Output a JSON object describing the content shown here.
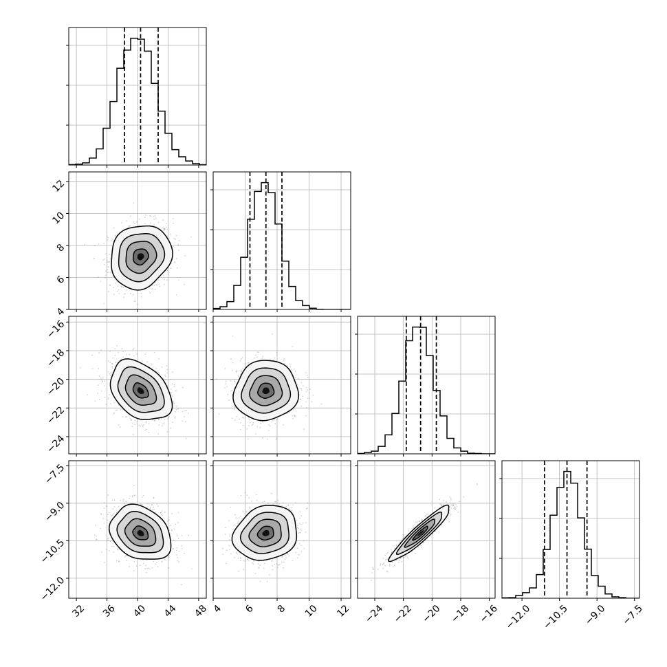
{
  "chart_data": {
    "type": "corner",
    "grid": true,
    "parameters": [
      {
        "range": [
          31,
          49
        ],
        "ticks": [
          32,
          36,
          40,
          44,
          48
        ],
        "tick_labels": [
          "32",
          "36",
          "40",
          "44",
          "48"
        ],
        "quantiles": [
          38.3,
          40.4,
          42.7
        ],
        "hist": [
          0.3,
          0.6,
          1.4,
          4.5,
          10.4,
          23.7,
          40.9,
          62.3,
          74.0,
          81.6,
          81.0,
          73.3,
          52.6,
          34.7,
          20.4,
          9.9,
          5.3,
          2.6,
          0.9,
          0.2
        ]
      },
      {
        "range": [
          4,
          12.6
        ],
        "ticks": [
          4,
          6,
          8,
          10,
          12
        ],
        "tick_labels": [
          "4",
          "6",
          "8",
          "10",
          "12"
        ],
        "quantiles": [
          6.3,
          7.3,
          8.3
        ],
        "hist": [
          0.5,
          1.4,
          4.0,
          12.3,
          26.8,
          46.3,
          60.6,
          65.1,
          60.0,
          43.9,
          24.8,
          11.8,
          4.5,
          2.0,
          0.6,
          0.1,
          0,
          0,
          0,
          0
        ]
      },
      {
        "range": [
          -25.2,
          -15.6
        ],
        "ticks": [
          -24,
          -22,
          -20,
          -18,
          -16
        ],
        "tick_labels": [
          "−24",
          "−22",
          "−20",
          "−18",
          "−16"
        ],
        "quantiles": [
          -21.8,
          -20.8,
          -19.7
        ],
        "hist": [
          0.2,
          0.7,
          1.4,
          3.9,
          9.9,
          21.1,
          38.0,
          59.1,
          66.2,
          66.1,
          51.3,
          33.1,
          19.8,
          8.1,
          3.1,
          1.4,
          0.3,
          0.2,
          0,
          0
        ]
      },
      {
        "range": [
          -12.8,
          -7.3
        ],
        "ticks": [
          -12,
          -10.5,
          -9,
          -7.5
        ],
        "tick_labels": [
          "−12.0",
          "−10.5",
          "−9.0",
          "−7.5"
        ],
        "quantiles": [
          -11.1,
          -10.2,
          -9.4
        ],
        "hist": [
          0.2,
          0.3,
          1.4,
          2.9,
          5.3,
          12.2,
          25.1,
          42.8,
          57.1,
          65.3,
          59.3,
          41.4,
          25.3,
          11.7,
          6.2,
          2.2,
          0.7,
          0.3,
          0,
          0
        ]
      }
    ],
    "y_ticks": [
      null,
      {
        "ticks": [
          4,
          6,
          8,
          10,
          12
        ],
        "tick_labels": [
          "4",
          "6",
          "8",
          "10",
          "12"
        ]
      },
      {
        "ticks": [
          -24,
          -22,
          -20,
          -18,
          -16
        ],
        "tick_labels": [
          "−24",
          "−22",
          "−20",
          "−18",
          "−16"
        ]
      },
      {
        "ticks": [
          -12,
          -10.5,
          -9,
          -7.5
        ],
        "tick_labels": [
          "−12.0",
          "−10.5",
          "−9.0",
          "−7.5"
        ]
      }
    ],
    "pairs": [
      {
        "x": 0,
        "y": 1,
        "mean": [
          40.4,
          7.3
        ],
        "sd": [
          2.0,
          1.0
        ],
        "corr": 0.12
      },
      {
        "x": 0,
        "y": 2,
        "mean": [
          40.4,
          -20.8
        ],
        "sd": [
          2.0,
          1.05
        ],
        "corr": -0.35
      },
      {
        "x": 1,
        "y": 2,
        "mean": [
          7.3,
          -20.8
        ],
        "sd": [
          1.0,
          1.05
        ],
        "corr": 0.05
      },
      {
        "x": 0,
        "y": 3,
        "mean": [
          40.4,
          -10.2
        ],
        "sd": [
          2.0,
          0.55
        ],
        "corr": -0.25
      },
      {
        "x": 1,
        "y": 3,
        "mean": [
          7.3,
          -10.2
        ],
        "sd": [
          1.0,
          0.55
        ],
        "corr": 0.15
      },
      {
        "x": 2,
        "y": 3,
        "mean": [
          -20.8,
          -10.2
        ],
        "sd": [
          1.05,
          0.55
        ],
        "corr": 0.93
      }
    ],
    "contour_levels": [
      0.5,
      1.0,
      1.5,
      2.0
    ],
    "colors": {
      "line": "#000000",
      "grid": "#b0b0b0",
      "points": "#7f7f7f",
      "frame": "#000000"
    }
  }
}
